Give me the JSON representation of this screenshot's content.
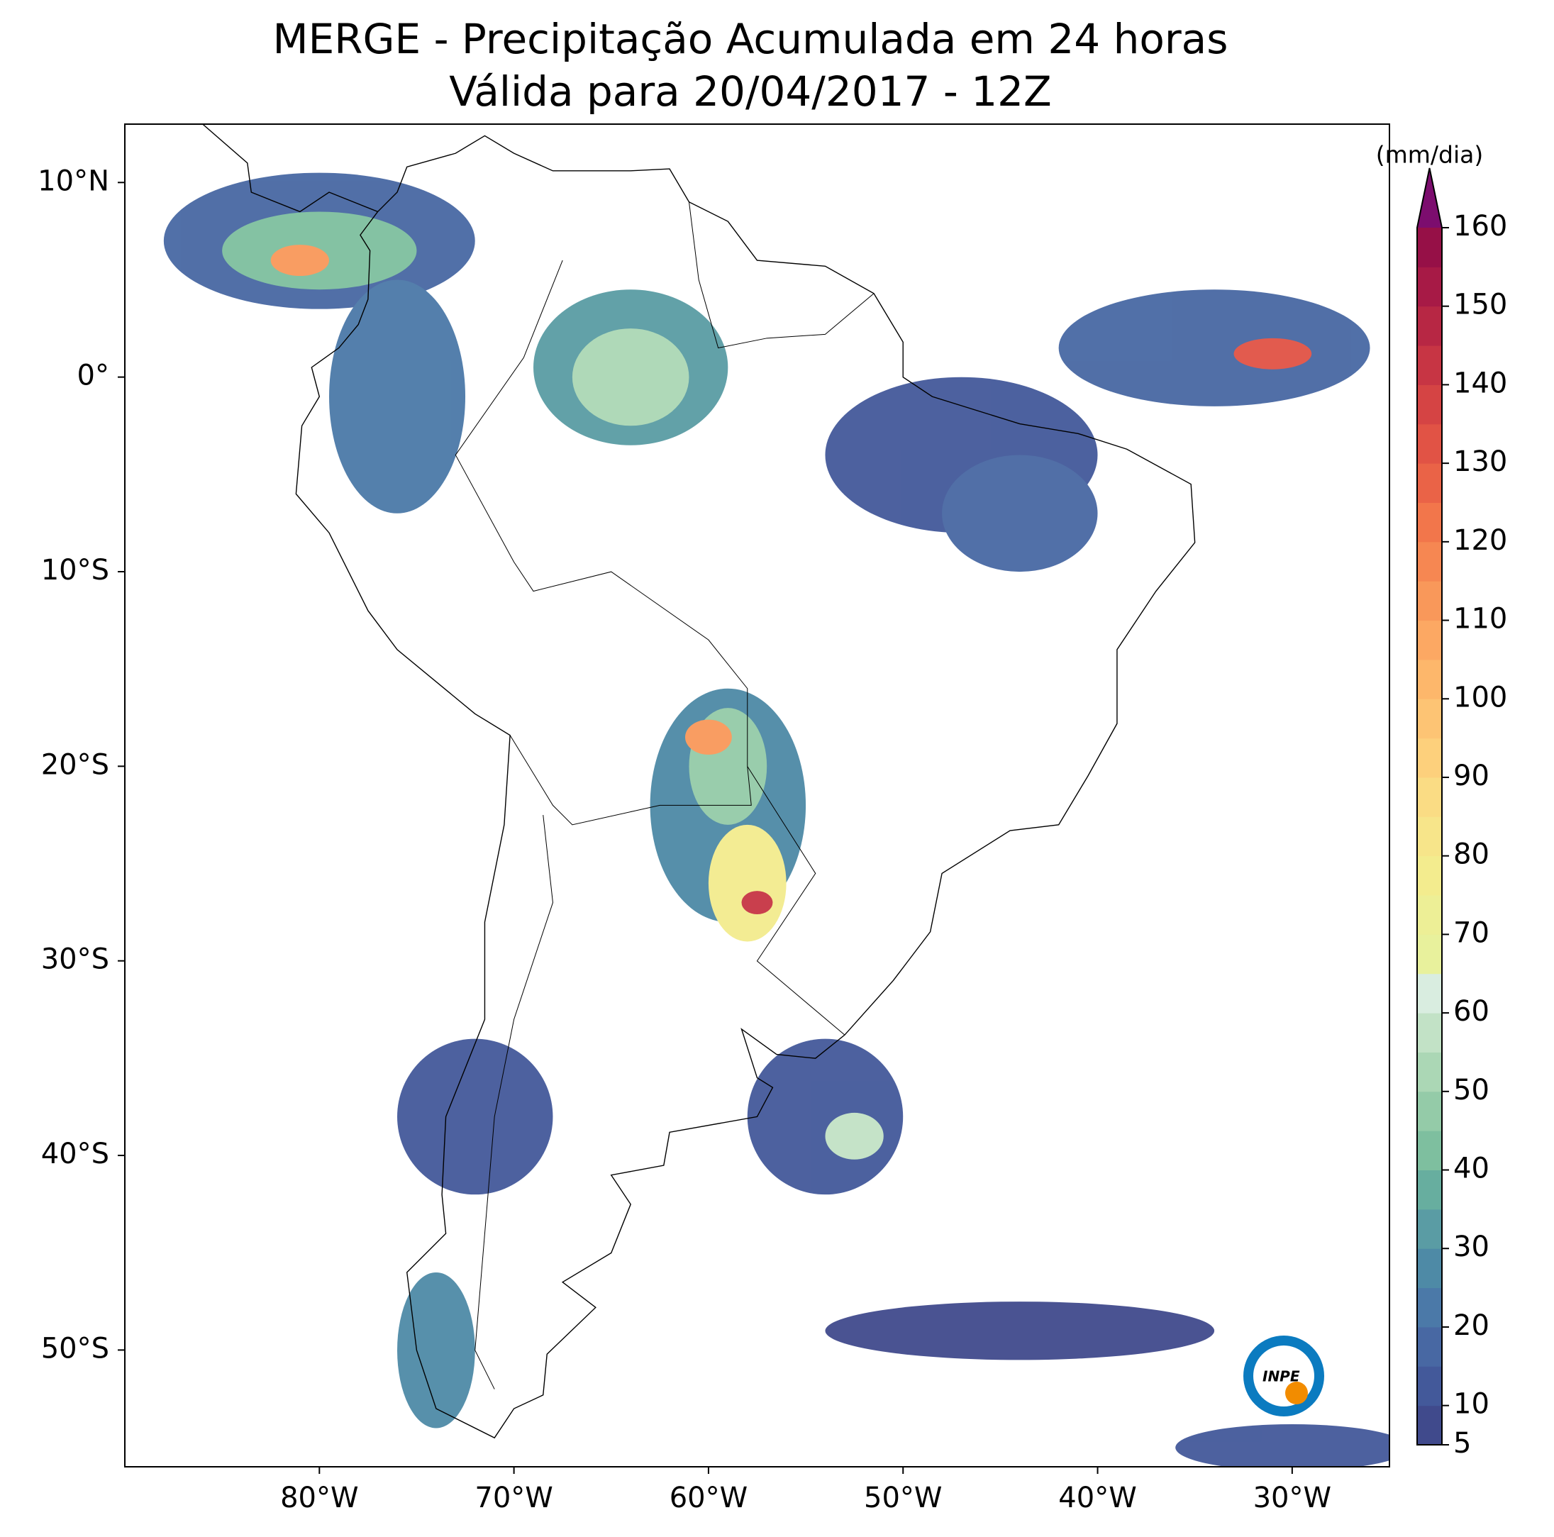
{
  "chart_data": {
    "type": "map",
    "title": "MERGE - Precipitação Acumulada em 24 horas",
    "subtitle": "Válida para 20/04/2017 - 12Z",
    "xlim": [
      -90,
      -25
    ],
    "ylim": [
      -56,
      13
    ],
    "xticks": [
      {
        "value": -80,
        "label": "80°W"
      },
      {
        "value": -70,
        "label": "70°W"
      },
      {
        "value": -60,
        "label": "60°W"
      },
      {
        "value": -50,
        "label": "50°W"
      },
      {
        "value": -40,
        "label": "40°W"
      },
      {
        "value": -30,
        "label": "30°W"
      }
    ],
    "yticks": [
      {
        "value": 10,
        "label": "10°N"
      },
      {
        "value": 0,
        "label": "0°"
      },
      {
        "value": -10,
        "label": "10°S"
      },
      {
        "value": -20,
        "label": "20°S"
      },
      {
        "value": -30,
        "label": "30°S"
      },
      {
        "value": -40,
        "label": "40°S"
      },
      {
        "value": -50,
        "label": "50°S"
      }
    ],
    "colorbar": {
      "label": "(mm/dia)",
      "lim": [
        5,
        160
      ],
      "ticks": [
        5,
        10,
        20,
        30,
        40,
        50,
        60,
        70,
        80,
        90,
        100,
        110,
        120,
        130,
        140,
        150,
        160
      ],
      "levels": [
        5,
        10,
        15,
        20,
        25,
        30,
        35,
        40,
        45,
        50,
        55,
        60,
        65,
        70,
        75,
        80,
        85,
        90,
        95,
        100,
        105,
        110,
        115,
        120,
        125,
        130,
        135,
        140,
        145,
        150,
        155,
        160
      ],
      "colors": [
        "#404a8c",
        "#43599a",
        "#4868a3",
        "#4b79a8",
        "#4e8aa6",
        "#5a9ca4",
        "#67ae9f",
        "#7ebf9f",
        "#94cba8",
        "#abd7b5",
        "#c2e2c6",
        "#d9ede0",
        "#e8f19c",
        "#edef96",
        "#f3ec8e",
        "#f7e58a",
        "#fadc84",
        "#fdd07c",
        "#fdc474",
        "#fdb76b",
        "#fca863",
        "#f9985a",
        "#f68752",
        "#f2764b",
        "#ea6347",
        "#e15345",
        "#d54444",
        "#c73544",
        "#b72744",
        "#a71a46",
        "#961047"
      ],
      "extend_color": "#7c0d6e"
    }
  }
}
